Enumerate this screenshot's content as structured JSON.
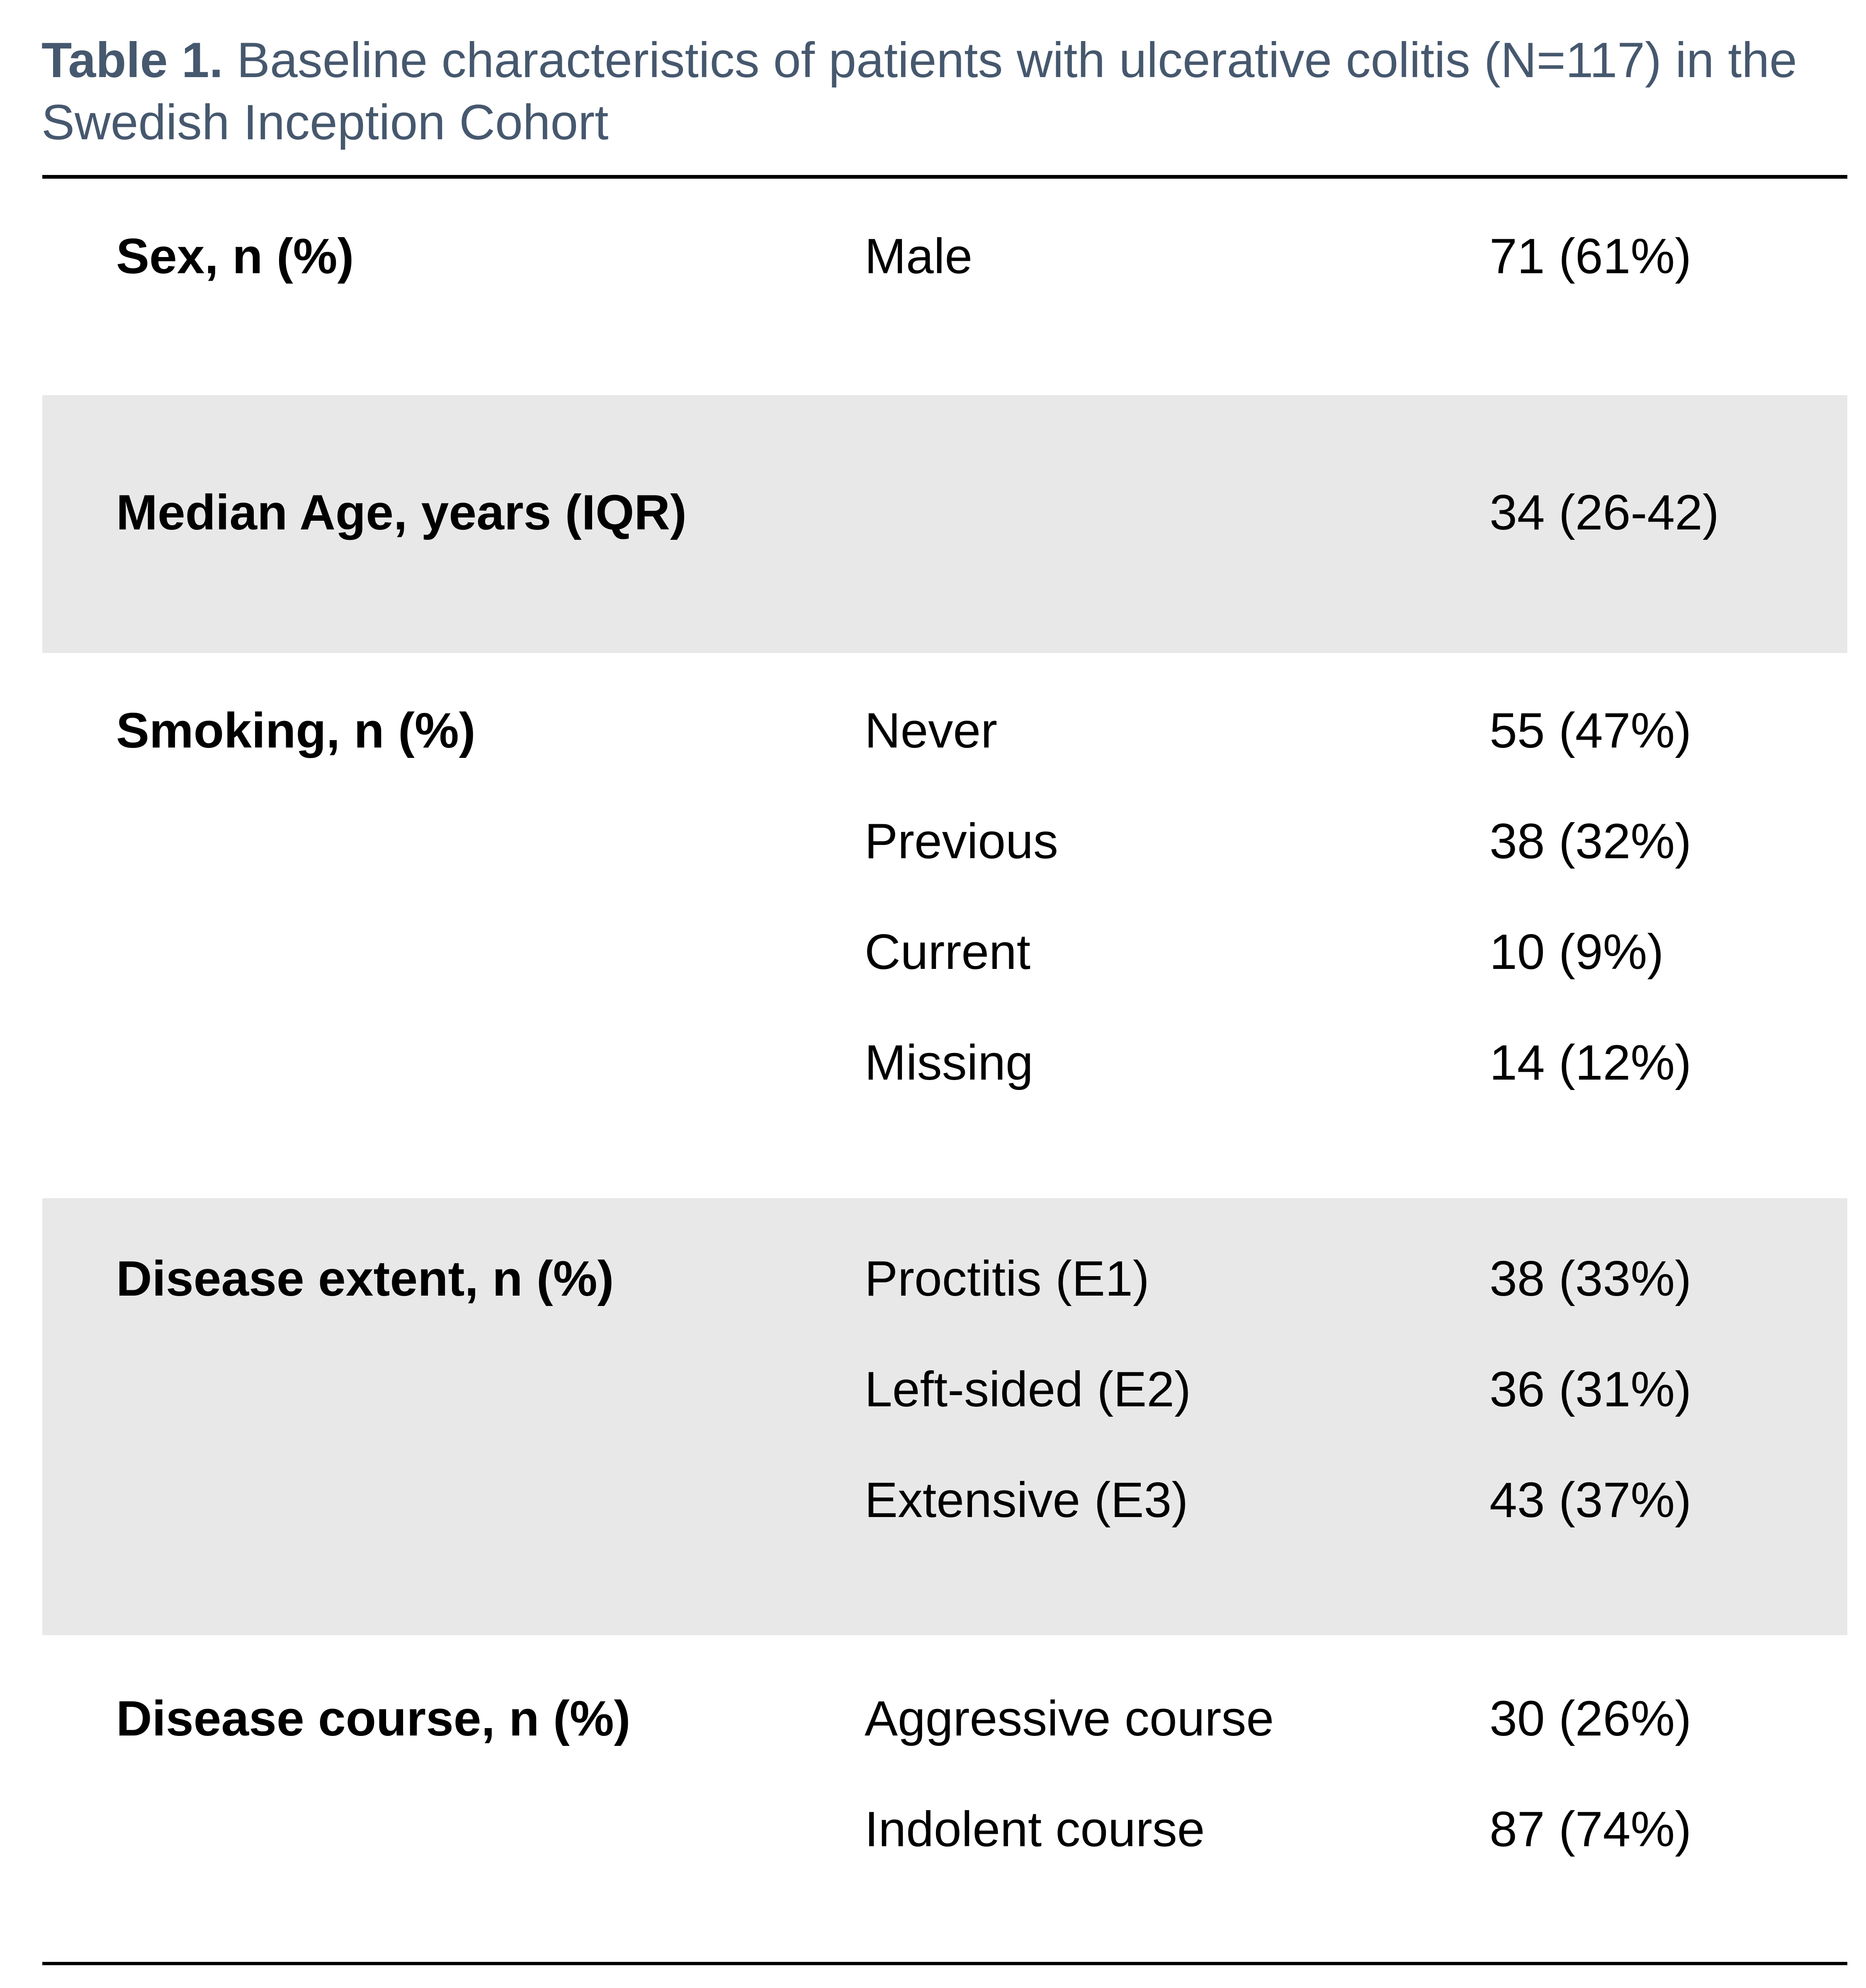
{
  "title": {
    "prefix": "Table 1.",
    "line1": "Baseline characteristics of patients with ulcerative colitis (N=117) in the",
    "line2": "Swedish Inception Cohort"
  },
  "colors": {
    "title_text": "#46586E",
    "alt_row_background": "#E8E8E8",
    "rule": "#000000",
    "body_text": "#000000"
  },
  "table": {
    "groups": [
      {
        "label": "Sex, n (%)",
        "rows": [
          {
            "sublabel": "Male",
            "value": "71 (61%)"
          }
        ]
      },
      {
        "label": "Median Age, years (IQR)",
        "rows": [
          {
            "sublabel": "",
            "value": "34 (26-42)"
          }
        ]
      },
      {
        "label": "Smoking, n (%)",
        "rows": [
          {
            "sublabel": "Never",
            "value": "55 (47%)"
          },
          {
            "sublabel": "Previous",
            "value": "38 (32%)"
          },
          {
            "sublabel": "Current",
            "value": "10 (9%)"
          },
          {
            "sublabel": "Missing",
            "value": "14 (12%)"
          }
        ]
      },
      {
        "label": "Disease extent, n (%)",
        "rows": [
          {
            "sublabel": "Proctitis (E1)",
            "value": "38 (33%)"
          },
          {
            "sublabel": "Left-sided (E2)",
            "value": "36 (31%)"
          },
          {
            "sublabel": "Extensive (E3)",
            "value": "43 (37%)"
          }
        ]
      },
      {
        "label": "Disease course, n (%)",
        "rows": [
          {
            "sublabel": "Aggressive course",
            "value": "30 (26%)"
          },
          {
            "sublabel": "Indolent course",
            "value": "87 (74%)"
          }
        ]
      }
    ]
  }
}
